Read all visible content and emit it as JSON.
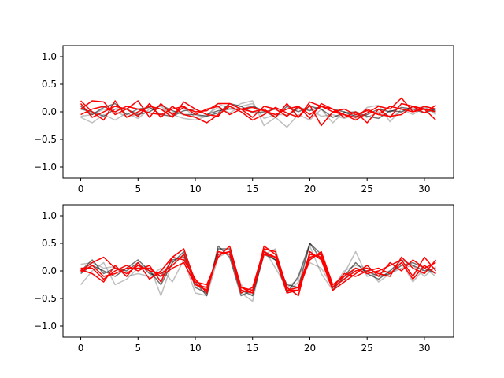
{
  "chart_data": [
    {
      "type": "line",
      "title": "",
      "xlabel": "",
      "ylabel": "",
      "xlim": [
        -1.55,
        32.55
      ],
      "ylim": [
        -1.2,
        1.2
      ],
      "xticks": [
        0,
        5,
        10,
        15,
        20,
        25,
        30
      ],
      "yticks": [
        -1.0,
        -0.5,
        0.0,
        0.5,
        1.0
      ],
      "ytick_labels": [
        "−1.0",
        "−0.5",
        "0.0",
        "0.5",
        "1.0"
      ],
      "grid": false,
      "legend": "none",
      "colors": {
        "dark": "#000000",
        "gray": "#808080",
        "red": "#ff0000"
      },
      "x": [
        0,
        1,
        2,
        3,
        4,
        5,
        6,
        7,
        8,
        9,
        10,
        11,
        12,
        13,
        14,
        15,
        16,
        17,
        18,
        19,
        20,
        21,
        22,
        23,
        24,
        25,
        26,
        27,
        28,
        29,
        30,
        31
      ],
      "series": [
        {
          "color": "gray",
          "values": [
            -0.1,
            -0.2,
            -0.05,
            -0.15,
            -0.02,
            -0.12,
            0.05,
            0.1,
            -0.05,
            -0.12,
            -0.15,
            -0.08,
            0.15,
            0.05,
            0.15,
            0.2,
            -0.25,
            -0.1,
            -0.28,
            -0.05,
            -0.15,
            0.05,
            -0.2,
            0.0,
            -0.12,
            0.08,
            0.12,
            -0.18,
            0.05,
            -0.05,
            0.08,
            -0.03
          ]
        },
        {
          "color": "gray",
          "values": [
            -0.08,
            -0.05,
            0.05,
            0.0,
            -0.08,
            -0.05,
            0.1,
            0.05,
            -0.02,
            0.08,
            -0.1,
            -0.05,
            0.08,
            -0.02,
            0.1,
            0.15,
            -0.12,
            -0.05,
            -0.05,
            0.05,
            0.05,
            -0.08,
            -0.05,
            -0.12,
            -0.05,
            -0.1,
            0.0,
            -0.1,
            0.0,
            0.05,
            0.1,
            -0.05
          ]
        },
        {
          "color": "dark",
          "values": [
            0.05,
            0.0,
            -0.08,
            0.05,
            0.05,
            -0.05,
            0.0,
            0.12,
            0.02,
            -0.05,
            -0.05,
            -0.08,
            -0.02,
            0.15,
            0.1,
            -0.02,
            0.0,
            0.05,
            -0.08,
            0.08,
            0.02,
            0.1,
            0.05,
            0.0,
            -0.08,
            -0.05,
            0.05,
            0.0,
            0.08,
            0.05,
            -0.02,
            0.05
          ]
        },
        {
          "color": "dark",
          "values": [
            0.1,
            -0.05,
            0.08,
            0.15,
            -0.05,
            0.05,
            0.08,
            -0.05,
            -0.08,
            0.02,
            0.05,
            -0.05,
            0.02,
            0.05,
            0.05,
            0.1,
            0.02,
            -0.1,
            0.1,
            0.0,
            0.1,
            0.05,
            -0.1,
            -0.02,
            0.0,
            -0.08,
            -0.12,
            0.02,
            0.0,
            0.1,
            0.05,
            0.02
          ]
        },
        {
          "color": "red",
          "values": [
            0.2,
            0.0,
            -0.15,
            0.2,
            -0.1,
            0.0,
            0.1,
            0.05,
            -0.1,
            0.18,
            0.05,
            -0.05,
            -0.08,
            0.15,
            0.05,
            0.0,
            0.05,
            -0.1,
            0.15,
            -0.1,
            0.18,
            0.1,
            0.05,
            -0.05,
            -0.15,
            -0.02,
            0.1,
            0.05,
            0.25,
            0.0,
            0.05,
            -0.15
          ]
        },
        {
          "color": "red",
          "values": [
            0.05,
            0.2,
            0.18,
            -0.05,
            0.05,
            0.2,
            -0.1,
            0.15,
            -0.05,
            0.08,
            0.0,
            0.02,
            0.15,
            0.15,
            0.05,
            -0.1,
            0.1,
            0.05,
            -0.08,
            0.1,
            -0.12,
            0.15,
            0.05,
            -0.1,
            0.0,
            -0.2,
            0.05,
            -0.1,
            0.15,
            0.1,
            -0.02,
            0.12
          ]
        },
        {
          "color": "red",
          "values": [
            0.15,
            -0.1,
            0.0,
            0.1,
            0.05,
            -0.08,
            0.15,
            -0.1,
            0.1,
            -0.05,
            -0.1,
            -0.2,
            -0.05,
            0.1,
            0.0,
            -0.15,
            -0.05,
            0.08,
            -0.02,
            -0.1,
            0.12,
            -0.25,
            0.0,
            -0.05,
            -0.1,
            0.05,
            -0.05,
            -0.08,
            -0.05,
            0.1,
            0.05,
            0.0
          ]
        },
        {
          "color": "red",
          "values": [
            -0.05,
            0.05,
            0.1,
            0.0,
            0.1,
            0.05,
            -0.02,
            -0.05,
            0.05,
            0.1,
            -0.05,
            0.05,
            0.1,
            -0.05,
            0.05,
            0.08,
            0.02,
            -0.05,
            0.05,
            0.1,
            -0.05,
            0.1,
            0.0,
            0.05,
            -0.05,
            0.02,
            -0.05,
            0.1,
            0.05,
            0.0,
            0.1,
            0.05
          ]
        }
      ]
    },
    {
      "type": "line",
      "title": "",
      "xlabel": "",
      "ylabel": "",
      "xlim": [
        -1.55,
        32.55
      ],
      "ylim": [
        -1.2,
        1.2
      ],
      "xticks": [
        0,
        5,
        10,
        15,
        20,
        25,
        30
      ],
      "yticks": [
        -1.0,
        -0.5,
        0.0,
        0.5,
        1.0
      ],
      "ytick_labels": [
        "−1.0",
        "−0.5",
        "0.0",
        "0.5",
        "1.0"
      ],
      "grid": false,
      "legend": "none",
      "colors": {
        "dark": "#000000",
        "gray": "#808080",
        "red": "#ff0000"
      },
      "x": [
        0,
        1,
        2,
        3,
        4,
        5,
        6,
        7,
        8,
        9,
        10,
        11,
        12,
        13,
        14,
        15,
        16,
        17,
        18,
        19,
        20,
        21,
        22,
        23,
        24,
        25,
        26,
        27,
        28,
        29,
        30,
        31
      ],
      "series": [
        {
          "color": "gray",
          "values": [
            -0.25,
            0.0,
            0.15,
            -0.25,
            -0.15,
            0.05,
            0.1,
            -0.45,
            0.15,
            0.3,
            -0.15,
            -0.35,
            0.35,
            0.3,
            -0.4,
            -0.55,
            0.4,
            0.05,
            -0.3,
            -0.15,
            0.45,
            -0.05,
            -0.35,
            -0.05,
            0.35,
            -0.1,
            -0.05,
            0.0,
            0.15,
            -0.2,
            0.05,
            -0.1
          ]
        },
        {
          "color": "gray",
          "values": [
            0.12,
            0.15,
            0.05,
            0.08,
            -0.1,
            -0.05,
            -0.1,
            0.05,
            -0.2,
            0.2,
            -0.4,
            -0.45,
            0.25,
            0.35,
            -0.25,
            -0.45,
            0.3,
            0.4,
            -0.4,
            -0.2,
            0.15,
            0.05,
            -0.3,
            0.0,
            0.1,
            0.05,
            -0.2,
            -0.05,
            0.05,
            0.1,
            -0.1,
            0.08
          ]
        },
        {
          "color": "dark",
          "values": [
            0.0,
            0.2,
            -0.05,
            0.05,
            0.0,
            0.15,
            -0.05,
            -0.1,
            0.2,
            0.25,
            -0.2,
            -0.45,
            0.45,
            0.25,
            -0.45,
            -0.35,
            0.35,
            0.2,
            -0.25,
            -0.3,
            0.5,
            0.2,
            -0.3,
            -0.15,
            0.05,
            0.0,
            -0.1,
            -0.05,
            0.1,
            0.15,
            0.05,
            -0.05
          ]
        },
        {
          "color": "dark",
          "values": [
            -0.05,
            0.1,
            0.0,
            -0.1,
            0.05,
            0.2,
            0.0,
            -0.25,
            0.15,
            0.35,
            -0.3,
            -0.4,
            0.4,
            0.4,
            -0.35,
            -0.45,
            0.3,
            0.2,
            -0.4,
            -0.1,
            0.5,
            0.3,
            -0.35,
            -0.1,
            0.15,
            -0.05,
            -0.15,
            0.0,
            0.2,
            0.1,
            0.0,
            0.05
          ]
        },
        {
          "color": "red",
          "values": [
            0.05,
            0.05,
            -0.15,
            0.0,
            0.1,
            0.0,
            0.1,
            -0.2,
            0.25,
            0.4,
            -0.2,
            -0.25,
            0.25,
            0.45,
            -0.3,
            -0.4,
            0.45,
            0.3,
            -0.35,
            -0.35,
            0.2,
            0.35,
            -0.25,
            -0.1,
            0.05,
            -0.05,
            0.0,
            0.1,
            0.2,
            -0.1,
            0.25,
            0.0
          ]
        },
        {
          "color": "red",
          "values": [
            0.0,
            0.15,
            0.25,
            0.05,
            -0.05,
            0.1,
            0.0,
            -0.05,
            0.1,
            0.3,
            -0.25,
            -0.3,
            0.3,
            0.35,
            -0.4,
            -0.3,
            0.4,
            0.35,
            -0.3,
            -0.45,
            0.35,
            0.2,
            -0.35,
            -0.2,
            -0.05,
            0.1,
            -0.1,
            0.15,
            0.0,
            0.2,
            0.05,
            0.15
          ]
        },
        {
          "color": "red",
          "values": [
            0.02,
            -0.05,
            -0.2,
            0.1,
            -0.1,
            0.15,
            -0.15,
            0.0,
            0.25,
            0.2,
            -0.15,
            -0.4,
            0.35,
            0.3,
            -0.3,
            -0.35,
            0.3,
            0.25,
            -0.4,
            -0.35,
            0.25,
            0.3,
            -0.3,
            -0.15,
            0.0,
            0.05,
            -0.05,
            -0.1,
            0.25,
            0.05,
            -0.05,
            0.2
          ]
        },
        {
          "color": "red",
          "values": [
            -0.02,
            0.1,
            -0.1,
            -0.05,
            0.05,
            0.05,
            0.05,
            -0.1,
            0.05,
            0.15,
            -0.25,
            -0.35,
            0.3,
            0.35,
            -0.35,
            -0.4,
            0.35,
            0.25,
            -0.35,
            -0.3,
            0.3,
            0.25,
            -0.3,
            -0.05,
            -0.1,
            0.0,
            0.05,
            -0.05,
            0.15,
            -0.15,
            0.1,
            -0.05
          ]
        }
      ]
    }
  ]
}
